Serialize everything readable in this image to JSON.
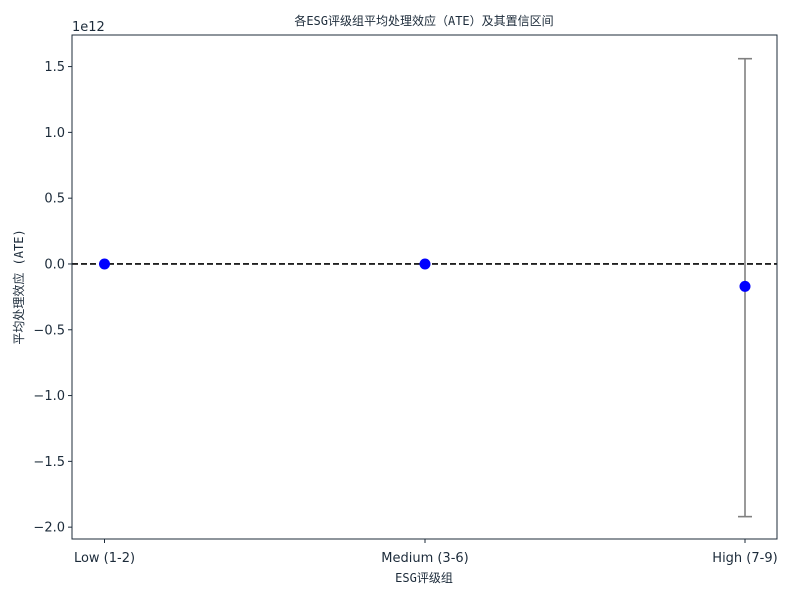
{
  "chart_data": {
    "type": "scatter",
    "title": "各ESG评级组平均处理效应（ATE）及其置信区间",
    "xlabel": "ESG评级组",
    "ylabel": "平均处理效应 (ATE)",
    "y_scale_label": "1e12",
    "categories": [
      "Low (1-2)",
      "Medium (3-6)",
      "High (7-9)"
    ],
    "series": [
      {
        "values": [
          0.0,
          0.0,
          -0.17
        ],
        "ci_lower": [
          null,
          null,
          -1.92
        ],
        "ci_upper": [
          null,
          null,
          1.56
        ]
      }
    ],
    "ylim": [
      -2.09,
      1.74
    ],
    "yticks": [
      -2.0,
      -1.5,
      -1.0,
      -0.5,
      0.0,
      0.5,
      1.0,
      1.5
    ],
    "ytick_labels": [
      "−2.0",
      "−1.5",
      "−1.0",
      "−0.5",
      "0.0",
      "0.5",
      "1.0",
      "1.5"
    ],
    "reference_line": 0,
    "grid": false,
    "colors": {
      "point": "#0000ff",
      "errorbar": "#808080",
      "reference": "#000000",
      "axes": "#1c2b3a"
    }
  }
}
